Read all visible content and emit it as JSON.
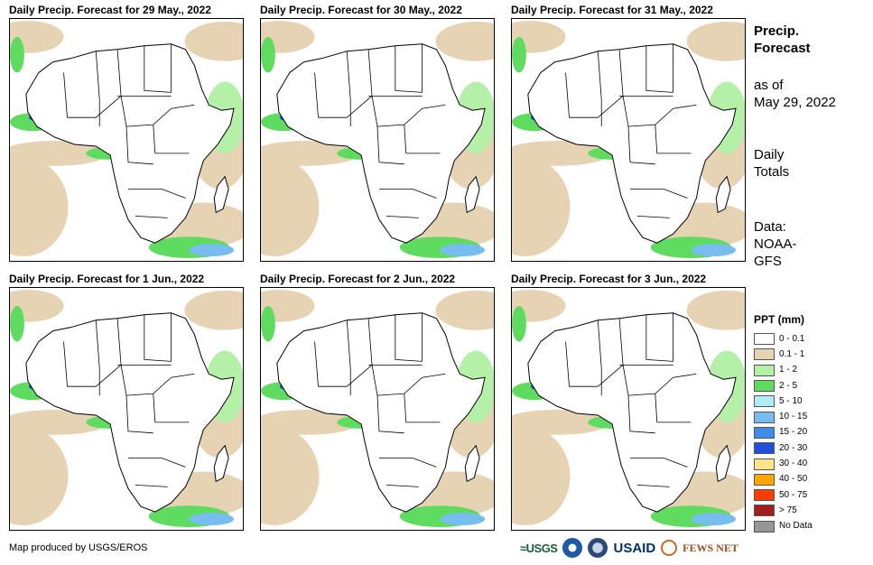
{
  "panels": [
    {
      "title": "Daily Precip. Forecast for 29 May., 2022"
    },
    {
      "title": "Daily Precip. Forecast for 30 May., 2022"
    },
    {
      "title": "Daily Precip. Forecast for 31 May., 2022"
    },
    {
      "title": "Daily Precip. Forecast for 1 Jun., 2022"
    },
    {
      "title": "Daily Precip. Forecast for 2 Jun., 2022"
    },
    {
      "title": "Daily Precip. Forecast for 3 Jun., 2022"
    }
  ],
  "side": {
    "heading_line1": "Precip.",
    "heading_line2": "Forecast",
    "asof_line1": "as of",
    "asof_line2": "May 29, 2022",
    "totals_line1": "Daily",
    "totals_line2": "Totals",
    "data_line1": "Data:",
    "data_line2": "NOAA-",
    "data_line3": "GFS"
  },
  "legend": {
    "title": "PPT (mm)",
    "items": [
      {
        "label": "0 - 0.1",
        "color": "#ffffff"
      },
      {
        "label": "0.1 - 1",
        "color": "#e6d3b3"
      },
      {
        "label": "1 - 2",
        "color": "#b4f0a8"
      },
      {
        "label": "2 - 5",
        "color": "#5fdc5f"
      },
      {
        "label": "5 - 10",
        "color": "#b0ecf4"
      },
      {
        "label": "10 - 15",
        "color": "#78bdf0"
      },
      {
        "label": "15 - 20",
        "color": "#3c8ce8"
      },
      {
        "label": "20 - 30",
        "color": "#1e50dc"
      },
      {
        "label": "30 - 40",
        "color": "#ffe48a"
      },
      {
        "label": "40 - 50",
        "color": "#ffa500"
      },
      {
        "label": "50 - 75",
        "color": "#ff3c00"
      },
      {
        "label": "> 75",
        "color": "#a01e1e"
      },
      {
        "label": "No Data",
        "color": "#969696"
      }
    ]
  },
  "footer": {
    "credit": "Map produced by USGS/EROS",
    "logo_usgs": "≈USGS",
    "logo_usaid": "USAID",
    "logo_fews": "FEWS NET"
  },
  "colors": {
    "land": "#ffffff",
    "dry": "#e6d3b3",
    "light": "#b4f0a8",
    "green": "#5fdc5f",
    "blue": "#78bdf0",
    "deep": "#1e50dc"
  }
}
